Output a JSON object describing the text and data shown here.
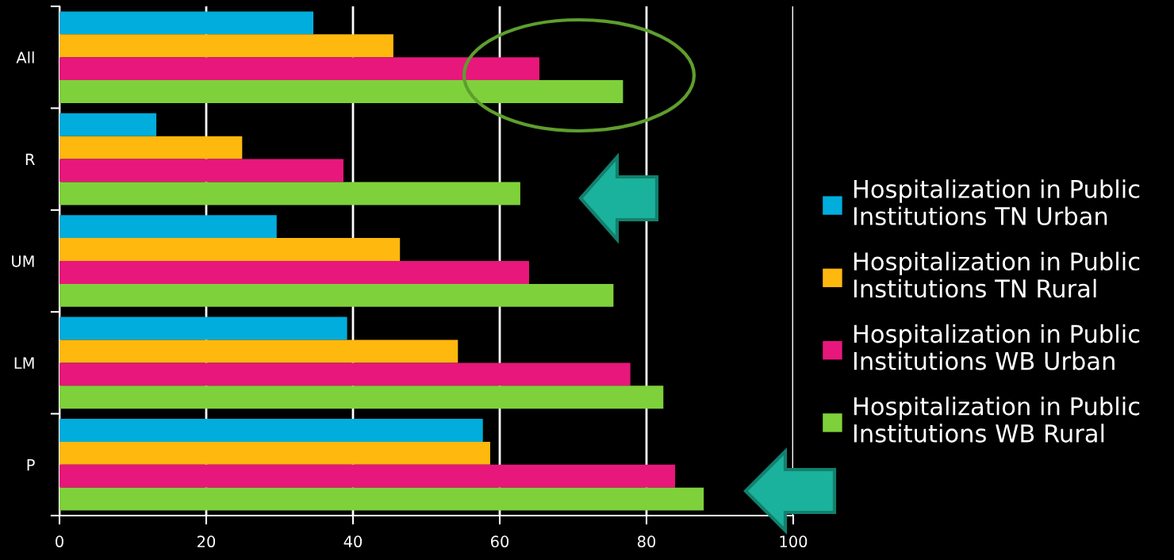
{
  "chart_data": {
    "type": "bar",
    "orientation": "horizontal",
    "categories": [
      "All",
      "R",
      "UM",
      "LM",
      "P"
    ],
    "series": [
      {
        "name": "Hospitalization in Public Institutions TN Urban",
        "color": "#00addc",
        "values": [
          34.6,
          13.2,
          29.6,
          39.2,
          57.7
        ]
      },
      {
        "name": "Hospitalization in Public Institutions TN Rural",
        "color": "#ffb80d",
        "values": [
          45.5,
          24.9,
          46.4,
          54.3,
          58.7
        ]
      },
      {
        "name": "Hospitalization in Public Institutions WB Urban",
        "color": "#e8177b",
        "values": [
          65.4,
          38.7,
          64.0,
          77.8,
          83.9
        ]
      },
      {
        "name": "Hospitalization in Public Institutions WB Rural",
        "color": "#7fd13b",
        "values": [
          76.8,
          62.8,
          75.5,
          82.3,
          87.8
        ]
      }
    ],
    "xlim": [
      0,
      100
    ],
    "xticks": [
      0,
      20,
      40,
      60,
      80,
      100
    ],
    "grid": "x",
    "legend": "right"
  }
}
